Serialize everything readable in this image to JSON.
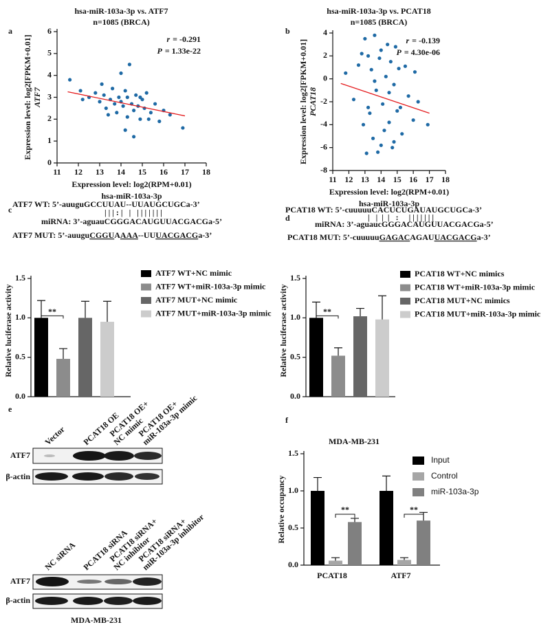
{
  "panels": [
    "a",
    "b",
    "c",
    "d",
    "e",
    "f"
  ],
  "sequences": {
    "c": [
      [
        {
          "text": "ATF7 WT: 5’-auuguGCCUUAU--UUAUGCUGCa-3’"
        }
      ],
      [
        {
          "text": "| | | : |   |   | | | | | | |"
        }
      ],
      [
        {
          "text": "miRNA: 3’-aguauCGGGACAUGUUACGACGa-5’"
        }
      ],
      [
        {
          "text": "ATF7 MUT: 5’-auugu"
        },
        {
          "text": "CGGU",
          "underline": true
        },
        {
          "text": "A"
        },
        {
          "text": "AAA",
          "underline": true
        },
        {
          "text": "--UU"
        },
        {
          "text": "UACGACG",
          "underline": true
        },
        {
          "text": "a-3’"
        }
      ]
    ],
    "d": [
      [
        {
          "text": "PCAT18 WT: 5’-cuuuuuCACUCUGAUAUGCUGCa-3’"
        }
      ],
      [
        {
          "text": "|   |  |  |   :     | | | | | | |"
        }
      ],
      [
        {
          "text": "miRNA: 3’-aguaucGGGACAUGUUACGACGa-5’"
        }
      ],
      [
        {
          "text": "PCAT18 MUT: 5’-cuuuuu"
        },
        {
          "text": "GAGAC",
          "underline": true
        },
        {
          "text": "AGAU"
        },
        {
          "text": "UACGACG",
          "underline": true
        },
        {
          "text": "a-3’"
        }
      ]
    ]
  },
  "blots": [
    {
      "lanes": [
        [
          "Vector"
        ],
        [
          "PCAT18 OE"
        ],
        [
          "PCAT18 OE+",
          "NC mimic"
        ],
        [
          "PCAT18 OE+",
          "miR-103a-3p mimic"
        ]
      ],
      "rows": [
        "ATF7",
        "β-actin"
      ]
    },
    {
      "lanes": [
        [
          "NC siRNA"
        ],
        [
          "PCAT18 siRNA"
        ],
        [
          "PCAT18 siRNA+",
          "NC inhibitor"
        ],
        [
          "PCAT18 siRNA+",
          "miR-103a-3p inhibitor"
        ]
      ],
      "rows": [
        "ATF7",
        "β-actin"
      ]
    }
  ],
  "blot_caption": "MDA-MB-231",
  "chart_data": [
    {
      "type": "scatter",
      "title": "hsa-miR-103a-3p vs. ATF7",
      "subtitle": "n=1085 (BRCA)",
      "x_label": [
        "Expression level: log2(RPM+0.01)",
        "hsa-miR-103a-3p"
      ],
      "y_label": [
        "Expression level: log2[FPKM+0.01]",
        "ATF7"
      ],
      "stats": [
        {
          "name": "r",
          "text": "= -0.291"
        },
        {
          "name": "P",
          "text": "= 1.33e-22"
        }
      ],
      "color": "#1f6aa5",
      "fit_color": "#e41a1c",
      "xlim": [
        11,
        18
      ],
      "ylim": [
        0,
        6
      ],
      "xticks": [
        11,
        12,
        13,
        14,
        15,
        16,
        17,
        18
      ],
      "yticks": [
        0,
        1,
        2,
        3,
        4,
        5,
        6
      ],
      "x": [
        11.6,
        12.1,
        12.5,
        12.8,
        13.0,
        13.2,
        13.3,
        13.5,
        13.6,
        13.7,
        13.8,
        13.9,
        14.0,
        14.0,
        14.1,
        14.2,
        14.3,
        14.3,
        14.4,
        14.5,
        14.6,
        14.7,
        14.8,
        14.9,
        15.0,
        15.1,
        15.2,
        15.4,
        15.6,
        15.8,
        16.0,
        16.3,
        16.9,
        13.1,
        14.2,
        14.6,
        15.3,
        13.4,
        14.9,
        12.2
      ],
      "y": [
        3.8,
        3.3,
        3.0,
        3.2,
        2.8,
        3.1,
        2.5,
        2.9,
        3.4,
        2.7,
        2.3,
        3.0,
        4.1,
        2.8,
        2.6,
        3.3,
        2.1,
        3.0,
        4.5,
        2.7,
        2.4,
        3.1,
        2.6,
        2.0,
        2.9,
        2.5,
        3.2,
        2.3,
        2.7,
        1.9,
        2.4,
        2.2,
        1.6,
        3.6,
        1.5,
        1.2,
        2.0,
        2.2,
        3.0,
        2.9
      ],
      "fit": {
        "x": [
          11.5,
          17
        ],
        "y": [
          3.25,
          2.15
        ]
      }
    },
    {
      "type": "scatter",
      "title": "hsa-miR-103a-3p vs. PCAT18",
      "subtitle": "n=1085 (BRCA)",
      "x_label": [
        "Expression level: log2(RPM+0.01)",
        "hsa-miR-103a-3p"
      ],
      "y_label": [
        "Expression level: log2[FPKM+0.01]",
        "PCAT18"
      ],
      "stats": [
        {
          "name": "r",
          "text": "= -0.139"
        },
        {
          "name": "P",
          "text": "= 4.30e-06"
        }
      ],
      "color": "#1f6aa5",
      "fit_color": "#e41a1c",
      "xlim": [
        11,
        18
      ],
      "ylim": [
        -8,
        4
      ],
      "xticks": [
        11,
        12,
        13,
        14,
        15,
        16,
        17,
        18
      ],
      "yticks": [
        -8,
        -6,
        -4,
        -2,
        0,
        2,
        4
      ],
      "x": [
        11.8,
        12.3,
        12.6,
        12.9,
        13.0,
        13.1,
        13.2,
        13.3,
        13.4,
        13.5,
        13.6,
        13.7,
        13.8,
        13.9,
        14.0,
        14.1,
        14.2,
        14.3,
        14.4,
        14.5,
        14.6,
        14.7,
        14.8,
        14.9,
        15.0,
        15.1,
        15.3,
        15.5,
        15.7,
        16.0,
        16.3,
        16.9,
        13.2,
        14.0,
        14.5,
        13.6,
        14.8,
        15.2,
        12.8,
        16.1
      ],
      "y": [
        0.5,
        -1.8,
        1.2,
        -4.0,
        3.5,
        -6.5,
        2.0,
        -3.0,
        0.8,
        -5.2,
        3.8,
        -1.0,
        -6.4,
        1.8,
        2.5,
        -2.2,
        -4.5,
        0.2,
        3.0,
        -3.8,
        1.5,
        -6.0,
        -0.5,
        2.8,
        -2.8,
        0.9,
        -4.8,
        1.1,
        -1.5,
        -3.6,
        -2.0,
        -4.0,
        -2.5,
        -5.8,
        -1.2,
        -0.2,
        -5.5,
        -2.5,
        2.2,
        0.6
      ],
      "fit": {
        "x": [
          11.5,
          17
        ],
        "y": [
          -0.4,
          -3.0
        ]
      }
    },
    {
      "type": "bar",
      "y_label": "Relative luciferase activity",
      "categories": [
        "ATF7 WT+NC mimic",
        "ATF7 WT+miR-103a-3p mimic",
        "ATF7 MUT+NC mimic",
        "ATF7 MUT+miR-103a-3p mimic"
      ],
      "values": [
        1.0,
        0.48,
        1.0,
        0.95
      ],
      "errors": [
        0.22,
        0.13,
        0.21,
        0.26
      ],
      "colors": [
        "#000000",
        "#8c8c8c",
        "#666666",
        "#cccccc"
      ],
      "ylim": [
        0,
        1.5
      ],
      "yticks": [
        {
          "value": 0,
          "label": "0.0"
        },
        {
          "value": 0.5,
          "label": "0.5"
        },
        {
          "value": 1,
          "label": "1.0"
        },
        {
          "value": 1.5,
          "label": "1.5"
        }
      ],
      "annotations": [
        "**"
      ]
    },
    {
      "type": "bar",
      "y_label": "Relative luciferase activity",
      "categories": [
        "PCAT18 WT+NC mimics",
        "PCAT18 WT+miR-103a-3p mimic",
        "PCAT18 MUT+NC mimics",
        "PCAT18 MUT+miR-103a-3p mimic"
      ],
      "values": [
        1.0,
        0.52,
        1.02,
        0.98
      ],
      "errors": [
        0.2,
        0.1,
        0.1,
        0.3
      ],
      "colors": [
        "#000000",
        "#8c8c8c",
        "#666666",
        "#cccccc"
      ],
      "ylim": [
        0,
        1.5
      ],
      "yticks": [
        {
          "value": 0,
          "label": "0.0"
        },
        {
          "value": 0.5,
          "label": "0.5"
        },
        {
          "value": 1,
          "label": "1.0"
        },
        {
          "value": 1.5,
          "label": "1.5"
        }
      ],
      "annotations": [
        "**"
      ]
    },
    {
      "type": "grouped_bar",
      "title": "MDA-MB-231",
      "y_label": "Relative occupancy",
      "categories": [
        "PCAT18",
        "ATF7"
      ],
      "series": [
        {
          "name": "Input",
          "color": "#000000",
          "values": [
            1.0,
            1.0
          ],
          "errors": [
            0.18,
            0.2
          ]
        },
        {
          "name": "Control",
          "color": "#a6a6a6",
          "values": [
            0.06,
            0.07
          ],
          "errors": [
            0.04,
            0.03
          ]
        },
        {
          "name": "miR-103a-3p",
          "color": "#808080",
          "values": [
            0.58,
            0.6
          ],
          "errors": [
            0.05,
            0.11
          ]
        }
      ],
      "ylim": [
        0,
        1.5
      ],
      "yticks": [
        {
          "value": 0,
          "label": "0.0"
        },
        {
          "value": 0.5,
          "label": "0.5"
        },
        {
          "value": 1,
          "label": "1.0"
        },
        {
          "value": 1.5,
          "label": "1.5"
        }
      ],
      "annotations": [
        "**",
        "**"
      ]
    }
  ]
}
